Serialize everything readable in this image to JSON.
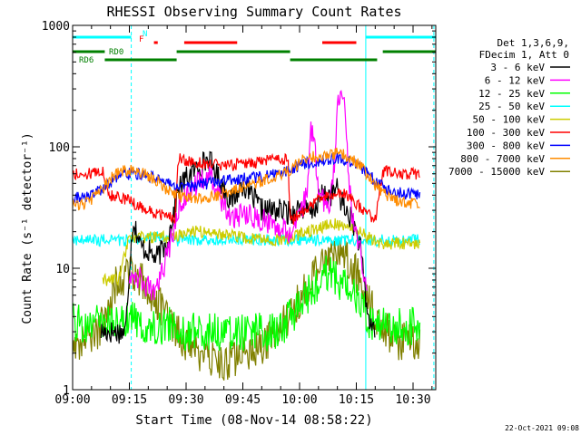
{
  "chart_data": {
    "type": "line",
    "title": "RHESSI Observing Summary Count Rates",
    "xlabel": "Start Time (08-Nov-14 08:58:22)",
    "ylabel": "Count Rate (s⁻¹ detector⁻¹)",
    "y_scale": "log",
    "ylim": [
      1,
      1000
    ],
    "xlim_minutes": [
      0,
      96
    ],
    "x_tick_labels": [
      "09:00",
      "09:15",
      "09:30",
      "09:45",
      "10:00",
      "10:15",
      "10:30"
    ],
    "x_tick_minutes": [
      0,
      15,
      30,
      45,
      60,
      75,
      90
    ],
    "y_tick_labels": [
      "1",
      "10",
      "100",
      "1000"
    ],
    "y_tick_values": [
      1,
      10,
      100,
      1000
    ],
    "grid": false,
    "legend_position": "right",
    "legend_header": [
      "Det 1,3,6,9,",
      "FDecim 1, Att 0"
    ],
    "timestamp": "22-Oct-2021 09:08",
    "flags": [
      {
        "label": "N",
        "color": "#00ffff",
        "segments": [
          [
            0,
            15.5
          ],
          [
            77.5,
            96
          ]
        ]
      },
      {
        "label": "F",
        "color": "#ff0000",
        "segments": [
          [
            21.5,
            22.5
          ],
          [
            29.5,
            43.5
          ],
          [
            66,
            75
          ]
        ]
      },
      {
        "label": "RD0",
        "color": "#008000",
        "segments": [
          [
            0,
            8.5
          ],
          [
            27.5,
            57.5
          ],
          [
            82,
            96
          ]
        ]
      },
      {
        "label": "RD6",
        "color": "#008000",
        "segments": [
          [
            8.5,
            27.5
          ],
          [
            57.5,
            80.5
          ]
        ]
      }
    ],
    "vlines": [
      {
        "minute": 0,
        "style": "solid"
      },
      {
        "minute": 15.5,
        "style": "dashed"
      },
      {
        "minute": 77.5,
        "style": "solid"
      },
      {
        "minute": 95.5,
        "style": "dashed"
      }
    ],
    "series": [
      {
        "name": "3 - 6 keV",
        "color": "#000000",
        "x": [
          7.5,
          9,
          12,
          14,
          15,
          16,
          18,
          20,
          22,
          25,
          28,
          30,
          33,
          36,
          38,
          42,
          45,
          50,
          55,
          58,
          60,
          63,
          66,
          68,
          70,
          72,
          74,
          76,
          77,
          78,
          80
        ],
        "y": [
          3,
          3,
          3,
          3,
          10,
          25,
          15,
          14,
          12,
          16,
          45,
          55,
          68,
          80,
          60,
          35,
          50,
          30,
          30,
          28,
          32,
          28,
          40,
          40,
          45,
          30,
          25,
          15,
          8,
          4,
          3
        ]
      },
      {
        "name": "6 - 12 keV",
        "color": "#ff00ff",
        "x": [
          15,
          16,
          18,
          20,
          22,
          25,
          28,
          30,
          33,
          36,
          38,
          42,
          45,
          50,
          55,
          58,
          60,
          62,
          63,
          64,
          65,
          67,
          68,
          69,
          70,
          71,
          72,
          73,
          74,
          76,
          77,
          78
        ],
        "y": [
          9,
          9.5,
          8,
          7,
          6,
          13,
          30,
          40,
          50,
          60,
          45,
          25,
          28,
          25,
          22,
          20,
          28,
          40,
          130,
          110,
          40,
          35,
          30,
          60,
          200,
          320,
          200,
          60,
          25,
          15,
          9,
          8
        ]
      },
      {
        "name": "12 - 25 keV",
        "color": "#00ff00",
        "x": [
          0,
          8,
          16,
          20,
          26,
          27,
          34,
          40,
          45,
          50,
          54,
          56,
          58,
          60,
          62,
          64,
          66,
          68,
          70,
          72,
          74,
          76,
          78,
          80,
          82,
          86,
          90,
          92
        ],
        "y": [
          3.5,
          3.5,
          3.8,
          3.2,
          3.5,
          3,
          3,
          3,
          3,
          3,
          3,
          3.5,
          4,
          5,
          6,
          7,
          8.5,
          9.5,
          8,
          7,
          6,
          5,
          4,
          3.2,
          3.5,
          3.3,
          3.3,
          3.3
        ]
      },
      {
        "name": "25 - 50 keV",
        "color": "#00ffff",
        "x": [
          0,
          5,
          8,
          12,
          16,
          20,
          26,
          27,
          34,
          42,
          48,
          52,
          56,
          58,
          62,
          66,
          70,
          74,
          78,
          80,
          84,
          88,
          92
        ],
        "y": [
          17,
          17,
          17,
          17,
          17,
          18,
          18,
          17,
          17,
          17,
          17,
          17,
          17,
          17,
          17,
          17,
          17,
          17,
          17,
          17,
          17,
          17,
          17
        ]
      },
      {
        "name": "50 - 100 keV",
        "color": "#cccc00",
        "x": [
          8,
          12,
          15,
          18,
          20,
          22,
          25,
          27,
          30,
          35,
          40,
          45,
          50,
          55,
          58,
          60,
          62,
          64,
          66,
          68,
          70,
          72,
          74,
          76,
          78,
          80,
          82,
          86,
          90,
          92
        ],
        "y": [
          8,
          8,
          18,
          18,
          18,
          18,
          18,
          18,
          20,
          20,
          19,
          18,
          17,
          17,
          18,
          19,
          20,
          21,
          22,
          23,
          23,
          22,
          21,
          20,
          18,
          17,
          16,
          16,
          16,
          16
        ]
      },
      {
        "name": "100 - 300 keV",
        "color": "#ff0000",
        "x": [
          0,
          4,
          8,
          8.5,
          10,
          13,
          15,
          18,
          20,
          22,
          25,
          27,
          28,
          30,
          35,
          40,
          45,
          48,
          50,
          52,
          55,
          57,
          57.5,
          60,
          63,
          66,
          68,
          70,
          72,
          74,
          76,
          78,
          80,
          82,
          86,
          90,
          92
        ],
        "y": [
          60,
          60,
          63,
          48,
          40,
          38,
          36,
          32,
          30,
          28,
          27,
          25,
          80,
          78,
          73,
          70,
          72,
          74,
          75,
          78,
          80,
          76,
          24,
          28,
          33,
          38,
          41,
          42,
          40,
          36,
          32,
          28,
          25,
          63,
          60,
          60,
          60
        ]
      },
      {
        "name": "300 - 800 keV",
        "color": "#0000ff",
        "x": [
          0,
          3,
          5,
          7,
          9,
          11,
          13,
          15,
          17,
          20,
          23,
          25,
          27,
          30,
          34,
          38,
          42,
          46,
          50,
          53,
          56,
          58,
          60,
          63,
          66,
          68,
          70,
          72,
          74,
          76,
          78,
          80,
          83,
          86,
          90,
          92
        ],
        "y": [
          38,
          38,
          40,
          43,
          48,
          54,
          58,
          60,
          60,
          58,
          54,
          50,
          47,
          47,
          49,
          51,
          53,
          55,
          57,
          59,
          62,
          64,
          70,
          75,
          78,
          80,
          80,
          78,
          75,
          70,
          60,
          52,
          45,
          42,
          40,
          40
        ]
      },
      {
        "name": "800 - 7000 keV",
        "color": "#ff8c00",
        "x": [
          0,
          3,
          5,
          7,
          9,
          11,
          13,
          15,
          17,
          20,
          23,
          25,
          27,
          30,
          34,
          38,
          42,
          46,
          50,
          53,
          56,
          58,
          60,
          63,
          66,
          68,
          70,
          72,
          74,
          76,
          78,
          80,
          83,
          86,
          90,
          92
        ],
        "y": [
          33,
          34,
          37,
          42,
          50,
          58,
          63,
          64,
          63,
          58,
          50,
          44,
          40,
          38,
          38,
          40,
          44,
          48,
          52,
          56,
          62,
          66,
          75,
          82,
          86,
          88,
          88,
          85,
          80,
          70,
          58,
          48,
          40,
          36,
          34,
          33
        ]
      },
      {
        "name": "7000 - 15000 keV",
        "color": "#808000",
        "x": [
          0,
          5,
          7,
          9,
          11,
          13,
          15,
          17,
          20,
          23,
          25,
          27,
          30,
          33,
          36,
          40,
          45,
          50,
          54,
          57,
          60,
          62,
          64,
          66,
          68,
          70,
          72,
          74,
          76,
          78,
          80,
          83,
          86,
          90,
          92
        ],
        "y": [
          2.5,
          2.5,
          3,
          5,
          7,
          8.5,
          9,
          8.5,
          7,
          5,
          4,
          3,
          2.5,
          2,
          1.8,
          1.6,
          2,
          2.3,
          3,
          4,
          5.5,
          7,
          9,
          11,
          12.5,
          13,
          12,
          10,
          8,
          6,
          4,
          3,
          2.5,
          2.5,
          2.5
        ]
      }
    ]
  }
}
